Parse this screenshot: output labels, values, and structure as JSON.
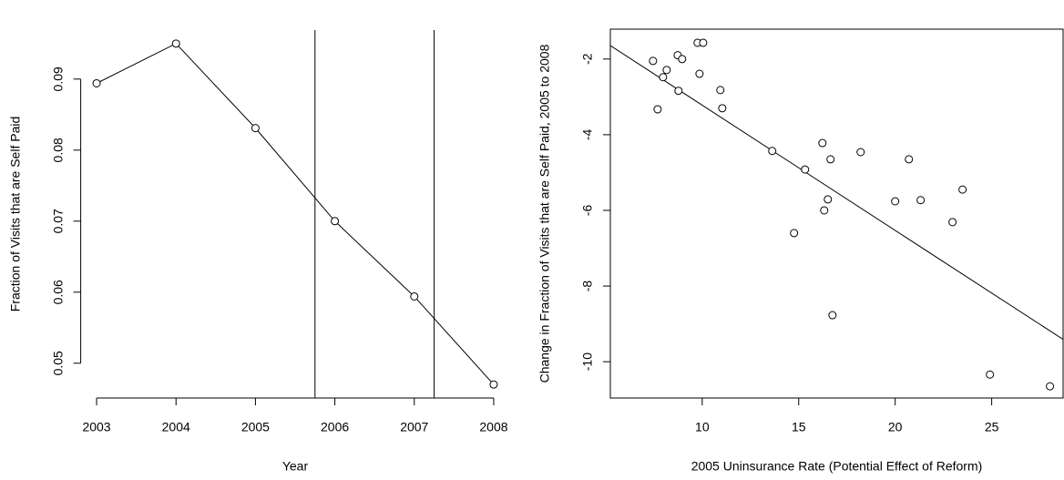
{
  "chart_data": [
    {
      "type": "line",
      "x_label": "Year",
      "y_label": "Fraction of Visits that are Self Paid",
      "x": [
        2003,
        2004,
        2005,
        2006,
        2007,
        2008
      ],
      "values": [
        0.0894,
        0.095,
        0.0831,
        0.07,
        0.0594,
        0.047
      ],
      "color": "#000000",
      "xlim": [
        2002.8,
        2008.2
      ],
      "ylim": [
        0.0451,
        0.0969
      ],
      "xticks": [
        2003,
        2004,
        2005,
        2006,
        2007,
        2008
      ],
      "yticks": [
        0.05,
        0.06,
        0.07,
        0.08,
        0.09
      ],
      "vlines": [
        2005.75,
        2007.25
      ]
    },
    {
      "type": "scatter",
      "x_label": "2005 Uninsurance Rate (Potential Effect of Reform)",
      "y_label": "Change in Fraction of Visits that are Self Paid, 2005 to 2008",
      "x": [
        7.45,
        7.69,
        7.97,
        8.16,
        8.73,
        8.77,
        8.96,
        9.76,
        9.86,
        10.05,
        10.94,
        11.04,
        13.63,
        14.76,
        15.33,
        16.23,
        16.32,
        16.51,
        16.65,
        16.75,
        18.21,
        20.0,
        20.71,
        21.32,
        22.97,
        23.49,
        24.91,
        28.02
      ],
      "values": [
        -2.05,
        -3.33,
        -2.48,
        -2.29,
        -1.9,
        -2.84,
        -2.0,
        -1.57,
        -2.39,
        -1.57,
        -2.82,
        -3.3,
        -4.43,
        -6.6,
        -4.92,
        -4.22,
        -6.0,
        -5.71,
        -4.65,
        -8.77,
        -4.46,
        -5.76,
        -4.65,
        -5.73,
        -6.31,
        -5.45,
        -10.34,
        -10.65
      ],
      "color": "#000000",
      "xlim": [
        5.24,
        28.7
      ],
      "ylim": [
        -10.96,
        -1.21
      ],
      "xticks": [
        10,
        15,
        20,
        25
      ],
      "yticks": [
        -10,
        -8,
        -6,
        -4,
        -2
      ],
      "abline": {
        "intercept": 0.09,
        "slope": -0.331
      }
    }
  ]
}
